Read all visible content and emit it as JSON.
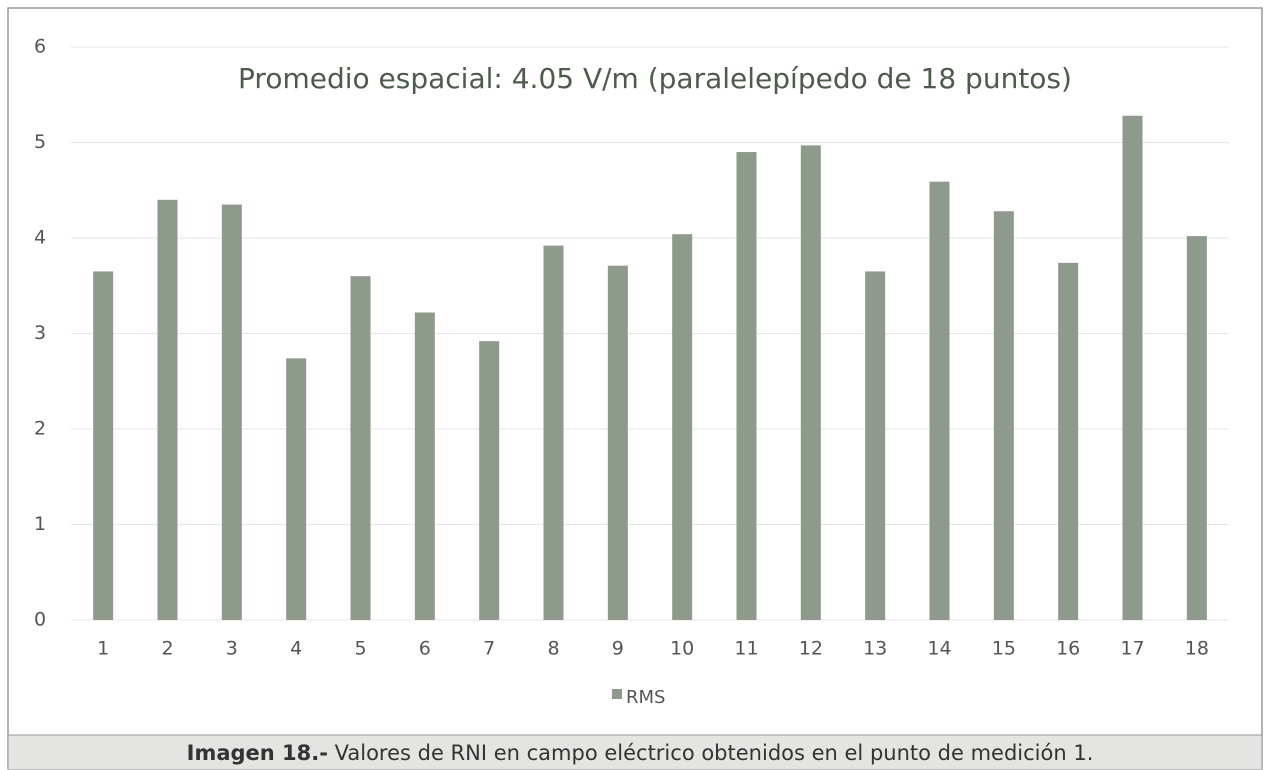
{
  "chart_data": {
    "type": "bar",
    "title": "Promedio espacial: 4.05 V/m (paralelepípedo de 18 puntos)",
    "categories": [
      "1",
      "2",
      "3",
      "4",
      "5",
      "6",
      "7",
      "8",
      "9",
      "10",
      "11",
      "12",
      "13",
      "14",
      "15",
      "16",
      "17",
      "18"
    ],
    "series": [
      {
        "name": "RMS",
        "color": "#8e9a8b",
        "values": [
          3.65,
          4.4,
          4.35,
          2.74,
          3.6,
          3.22,
          2.92,
          3.92,
          3.71,
          4.04,
          4.9,
          4.97,
          3.65,
          4.59,
          4.28,
          3.74,
          5.28,
          4.02
        ]
      }
    ],
    "ylim": [
      0,
      6
    ],
    "yticks": [
      0,
      1,
      2,
      3,
      4,
      5,
      6
    ],
    "grid": true,
    "legend": "bottom"
  },
  "caption": {
    "label": "Imagen 18.-",
    "text": " Valores de RNI en campo eléctrico obtenidos en el punto de medición 1."
  }
}
